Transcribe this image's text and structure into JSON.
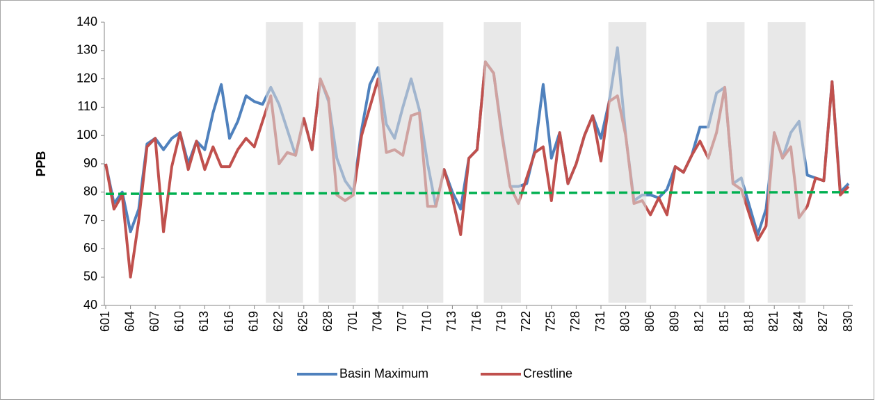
{
  "chart_data": {
    "type": "line",
    "y_label": "PPB",
    "categories": [
      "601",
      null,
      null,
      "604",
      null,
      null,
      "607",
      null,
      null,
      "610",
      null,
      null,
      "613",
      null,
      null,
      "616",
      null,
      null,
      "619",
      null,
      null,
      "622",
      null,
      null,
      "625",
      null,
      null,
      "628",
      null,
      null,
      "701",
      null,
      null,
      "704",
      null,
      null,
      "707",
      null,
      null,
      "710",
      null,
      null,
      "713",
      null,
      null,
      "716",
      null,
      null,
      "719",
      null,
      null,
      "722",
      null,
      null,
      "725",
      null,
      null,
      "728",
      null,
      null,
      "731",
      null,
      null,
      "803",
      null,
      null,
      "806",
      null,
      null,
      "809",
      null,
      null,
      "812",
      null,
      null,
      "815",
      null,
      null,
      "818",
      null,
      null,
      "821",
      null,
      null,
      "824",
      null,
      null,
      "827",
      null,
      null,
      "830"
    ],
    "series": [
      {
        "name": "Basin Maximum",
        "color": "#4f81bd",
        "values": [
          90,
          76,
          80,
          66,
          74,
          97,
          99,
          95,
          99,
          101,
          90,
          98,
          95,
          108,
          118,
          99,
          105,
          114,
          112,
          111,
          117,
          111,
          102,
          93,
          106,
          95,
          120,
          112,
          92,
          84,
          80,
          102,
          118,
          124,
          104,
          99,
          110,
          120,
          109,
          90,
          75,
          88,
          80,
          74,
          92,
          95,
          126,
          122,
          101,
          82,
          82,
          83,
          95,
          118,
          92,
          101,
          83,
          90,
          100,
          107,
          99,
          112,
          131,
          100,
          77,
          79,
          79,
          78,
          81,
          89,
          87,
          93,
          103,
          103,
          115,
          117,
          83,
          85,
          75,
          65,
          74,
          101,
          92,
          101,
          105,
          86,
          85,
          84,
          119,
          80,
          83
        ]
      },
      {
        "name": "Crestline",
        "color": "#c0504d",
        "values": [
          90,
          74,
          79,
          50,
          70,
          96,
          99,
          66,
          89,
          101,
          88,
          98,
          88,
          96,
          89,
          89,
          95,
          99,
          96,
          105,
          114,
          90,
          94,
          93,
          106,
          95,
          120,
          113,
          79,
          77,
          79,
          100,
          110,
          120,
          94,
          95,
          93,
          107,
          108,
          75,
          75,
          88,
          78,
          65,
          92,
          95,
          126,
          122,
          100,
          82,
          76,
          85,
          94,
          96,
          77,
          101,
          83,
          90,
          100,
          107,
          91,
          112,
          114,
          100,
          76,
          77,
          72,
          78,
          72,
          89,
          87,
          93,
          98,
          92,
          101,
          117,
          83,
          81,
          72,
          63,
          68,
          101,
          92,
          96,
          71,
          75,
          85,
          84,
          119,
          79,
          82
        ]
      }
    ],
    "reference_line": {
      "values": [
        79.4,
        80
      ],
      "color": "#00b050",
      "dashed": true
    },
    "shaded_spans": [
      [
        19.4,
        23.9
      ],
      [
        25.8,
        30.3
      ],
      [
        33.0,
        40.9
      ],
      [
        45.8,
        50.3
      ],
      [
        60.9,
        65.5
      ],
      [
        72.8,
        77.4
      ],
      [
        80.2,
        84.8
      ]
    ],
    "shade_color": "#d9d9d9",
    "ylim": [
      40,
      140
    ],
    "yticks": [
      40,
      50,
      60,
      70,
      80,
      90,
      100,
      110,
      120,
      130,
      140
    ],
    "grid": false
  }
}
